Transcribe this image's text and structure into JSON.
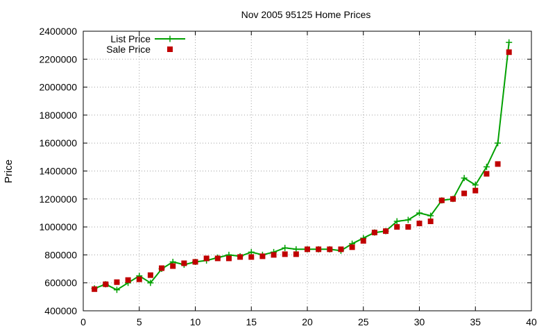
{
  "chart_data": {
    "type": "line",
    "title": "Nov 2005 95125 Home Prices",
    "xlabel": "",
    "ylabel": "Price",
    "xlim": [
      0,
      40
    ],
    "ylim": [
      400000,
      2400000
    ],
    "xticks": [
      0,
      5,
      10,
      15,
      20,
      25,
      30,
      35,
      40
    ],
    "yticks": [
      400000,
      600000,
      800000,
      1000000,
      1200000,
      1400000,
      1600000,
      1800000,
      2000000,
      2200000,
      2400000
    ],
    "grid": true,
    "legend_position": "top-left",
    "colors": {
      "list": "#00a000",
      "sale": "#c00000",
      "grid": "#a0a0a0"
    },
    "series": [
      {
        "name": "List Price",
        "style": "line-plus",
        "x": [
          1,
          2,
          3,
          4,
          5,
          6,
          7,
          8,
          9,
          10,
          11,
          12,
          13,
          14,
          15,
          16,
          17,
          18,
          19,
          20,
          21,
          22,
          23,
          24,
          25,
          26,
          27,
          28,
          29,
          30,
          31,
          32,
          33,
          34,
          35,
          36,
          37,
          38
        ],
        "values": [
          560000,
          590000,
          550000,
          600000,
          650000,
          600000,
          700000,
          750000,
          730000,
          750000,
          760000,
          780000,
          800000,
          790000,
          820000,
          800000,
          820000,
          850000,
          840000,
          840000,
          840000,
          840000,
          830000,
          880000,
          920000,
          960000,
          970000,
          1040000,
          1050000,
          1100000,
          1080000,
          1190000,
          1200000,
          1350000,
          1300000,
          1430000,
          1600000,
          2320000
        ]
      },
      {
        "name": "Sale Price",
        "style": "points-square",
        "x": [
          1,
          2,
          3,
          4,
          5,
          6,
          7,
          8,
          9,
          10,
          11,
          12,
          13,
          14,
          15,
          16,
          17,
          18,
          19,
          20,
          21,
          22,
          23,
          24,
          25,
          26,
          27,
          28,
          29,
          30,
          31,
          32,
          33,
          34,
          35,
          36,
          37,
          38
        ],
        "values": [
          555000,
          590000,
          605000,
          620000,
          625000,
          655000,
          705000,
          720000,
          740000,
          750000,
          775000,
          775000,
          775000,
          785000,
          785000,
          790000,
          800000,
          805000,
          805000,
          840000,
          840000,
          840000,
          840000,
          855000,
          900000,
          960000,
          970000,
          1000000,
          1000000,
          1025000,
          1040000,
          1190000,
          1200000,
          1240000,
          1260000,
          1380000,
          1450000,
          2250000
        ]
      }
    ]
  }
}
